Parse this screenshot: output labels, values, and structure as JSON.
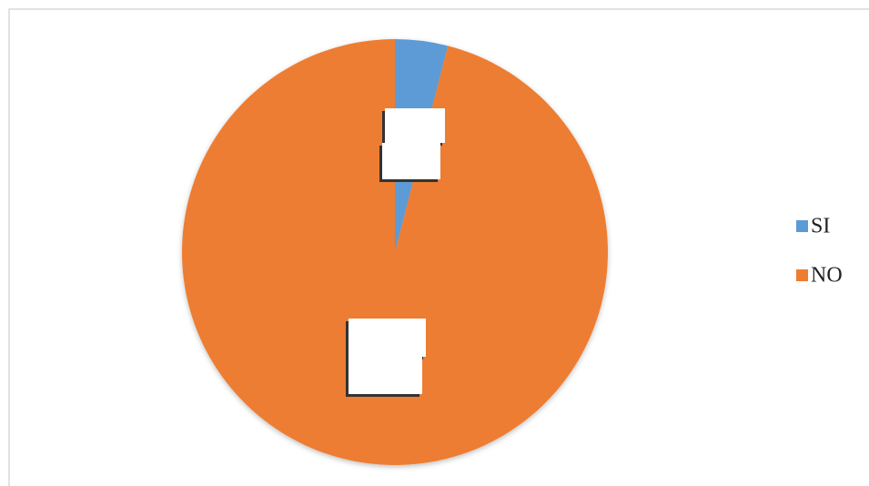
{
  "chart_data": {
    "type": "pie",
    "categories": [
      "SI",
      "NO"
    ],
    "values": [
      4,
      96
    ],
    "colors": [
      "#5b9bd5",
      "#ed7d31"
    ],
    "legend": "right"
  }
}
